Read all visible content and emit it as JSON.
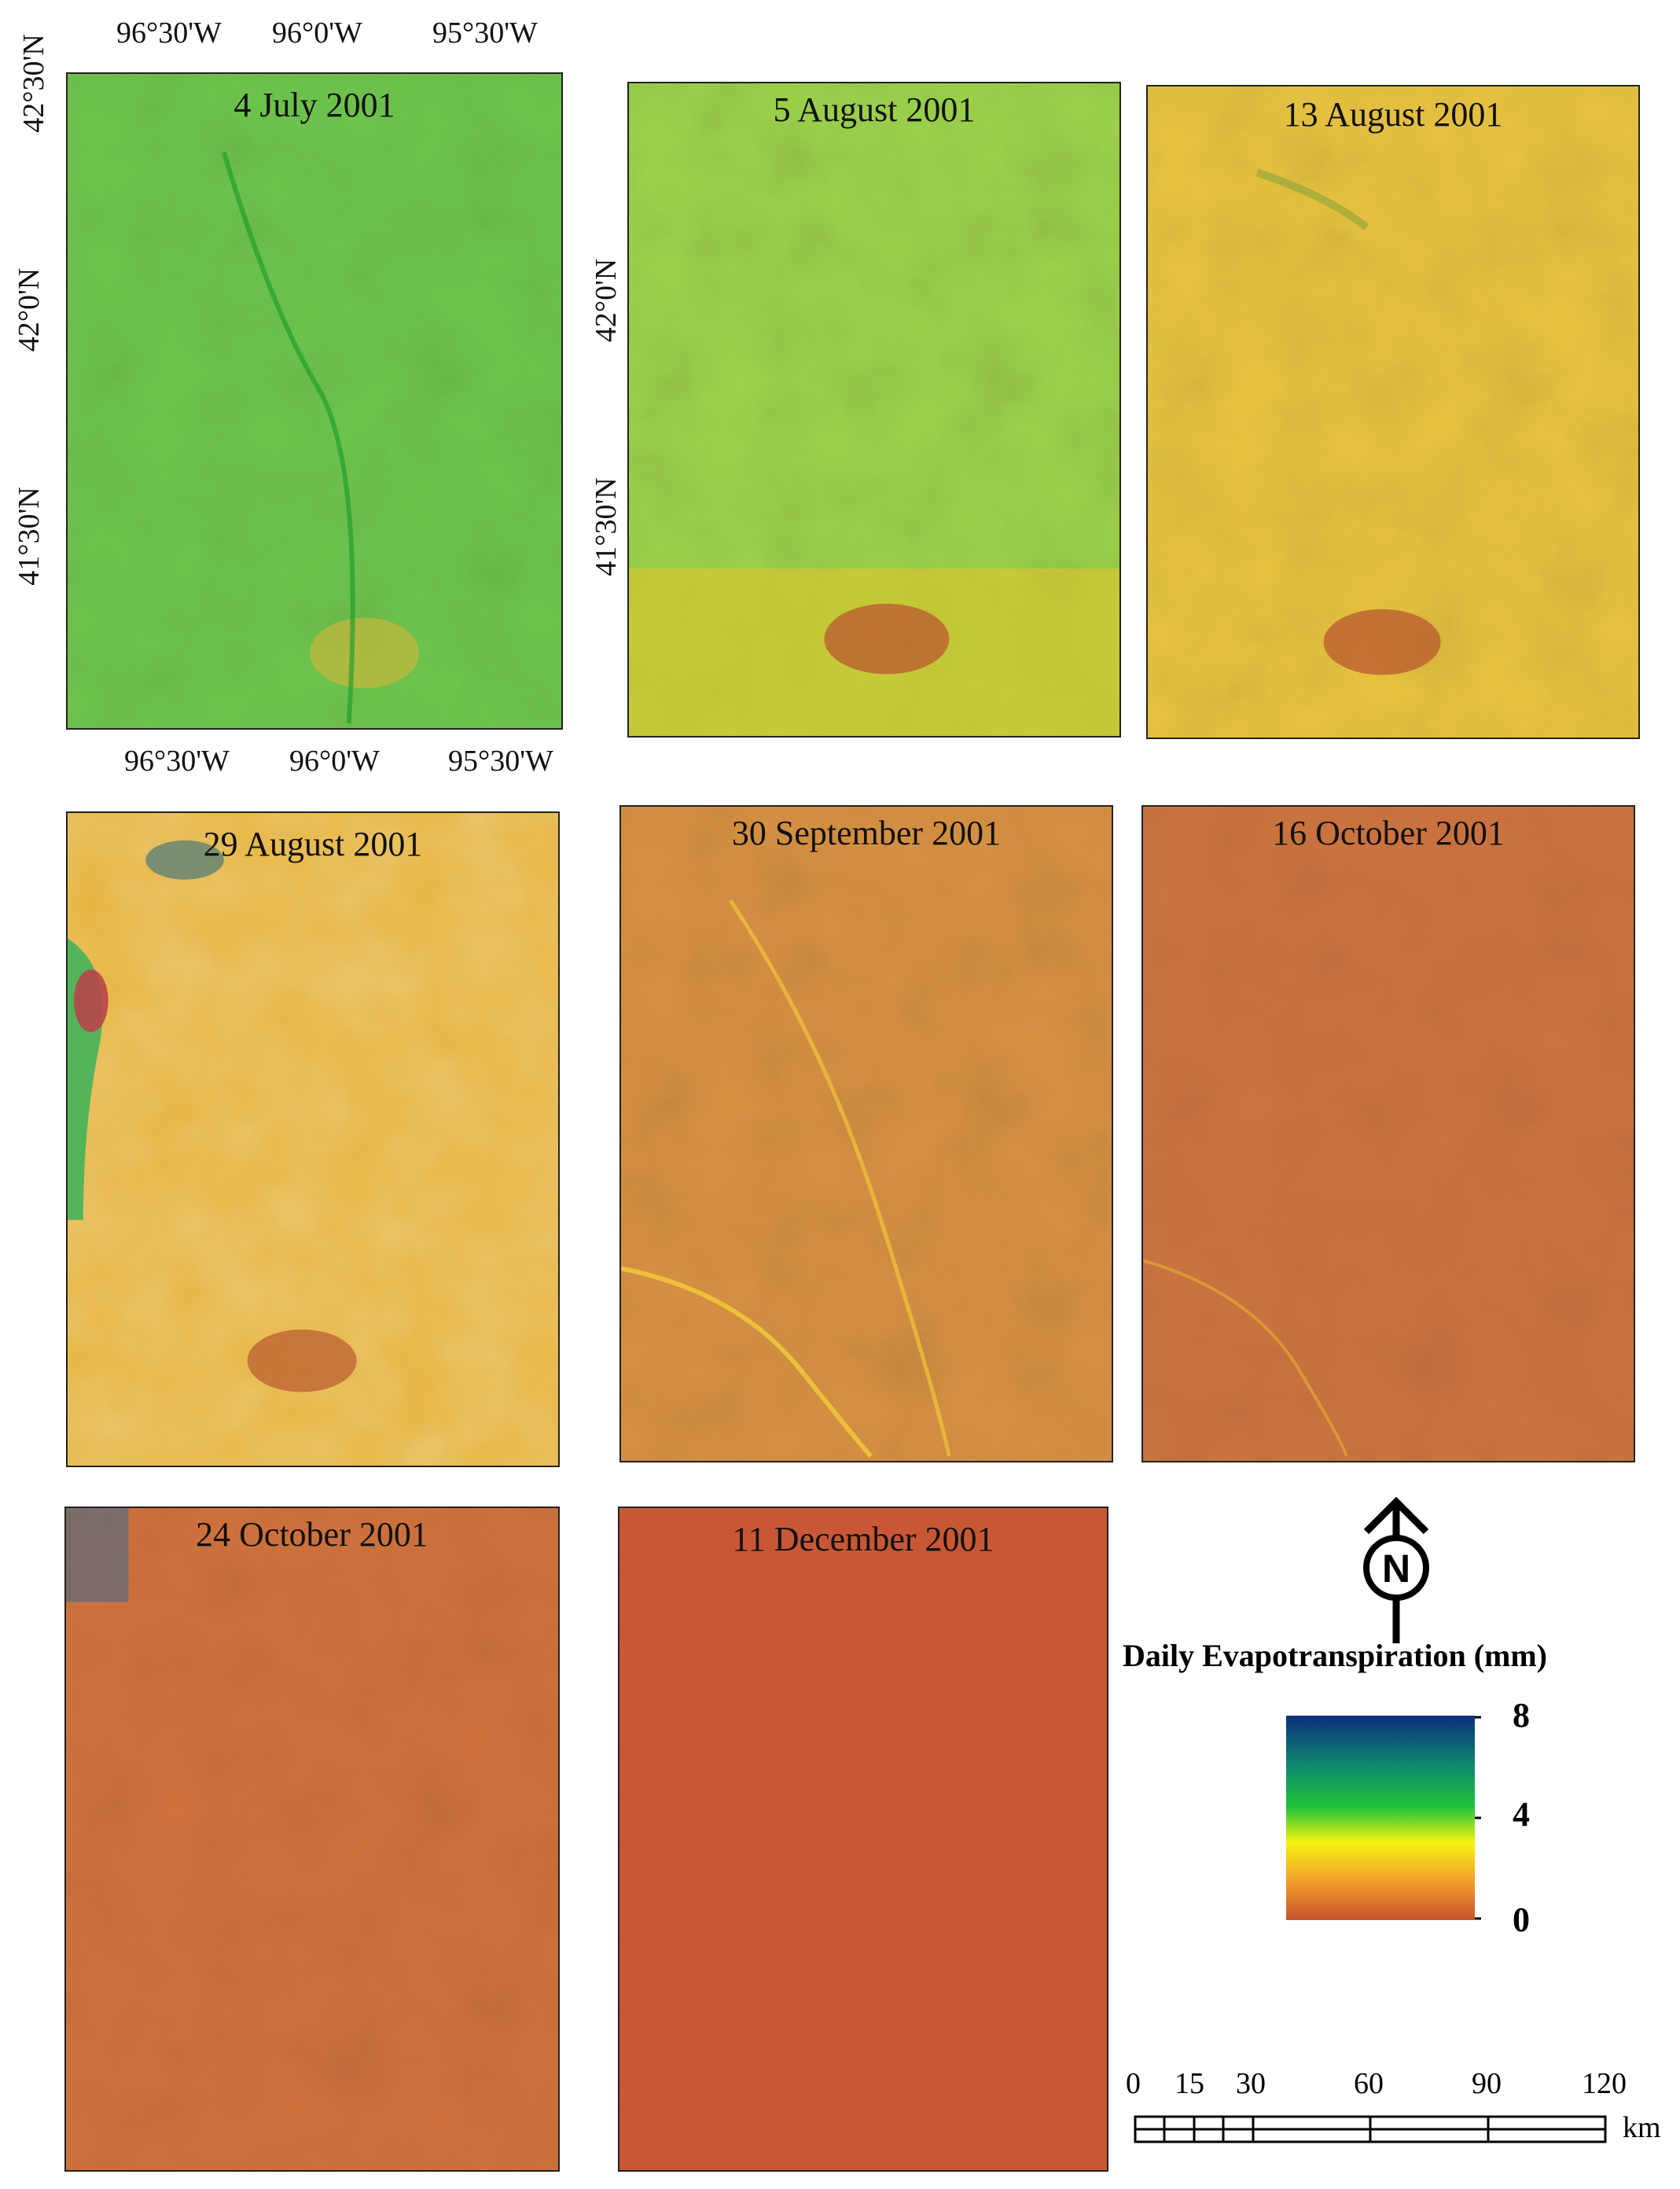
{
  "panels": [
    {
      "id": "p1",
      "title": "4 July 2001",
      "tone": "green"
    },
    {
      "id": "p2",
      "title": "5 August 2001",
      "tone": "lightgreen"
    },
    {
      "id": "p3",
      "title": "13 August 2001",
      "tone": "yellow"
    },
    {
      "id": "p4",
      "title": "29 August 2001",
      "tone": "yelloworange"
    },
    {
      "id": "p5",
      "title": "30 September 2001",
      "tone": "orange"
    },
    {
      "id": "p6",
      "title": "16 October 2001",
      "tone": "redorange"
    },
    {
      "id": "p7",
      "title": "24 October 2001",
      "tone": "redorange2"
    },
    {
      "id": "p8",
      "title": "11 December 2001",
      "tone": "red"
    }
  ],
  "axes": {
    "top_lon": [
      "96°30'W",
      "96°0'W",
      "95°30'W"
    ],
    "bottom_lon": [
      "96°30'W",
      "96°0'W",
      "95°30'W"
    ],
    "left_lat": [
      "42°30'N",
      "42°0'N",
      "41°30'N"
    ],
    "mid_lat": [
      "42°0'N",
      "41°30'N"
    ]
  },
  "north_arrow": {
    "letter": "N"
  },
  "legend": {
    "title": "Daily Evapotranspiration (mm)",
    "max_label": "8",
    "mid_label": "4",
    "min_label": "0",
    "colors": [
      "#0b2f7a",
      "#0f8a6e",
      "#22c43a",
      "#f5f510",
      "#f2a22a",
      "#c9522e"
    ]
  },
  "scale_bar": {
    "labels": [
      "0",
      "15",
      "30",
      "60",
      "90",
      "120"
    ],
    "unit": "km"
  }
}
